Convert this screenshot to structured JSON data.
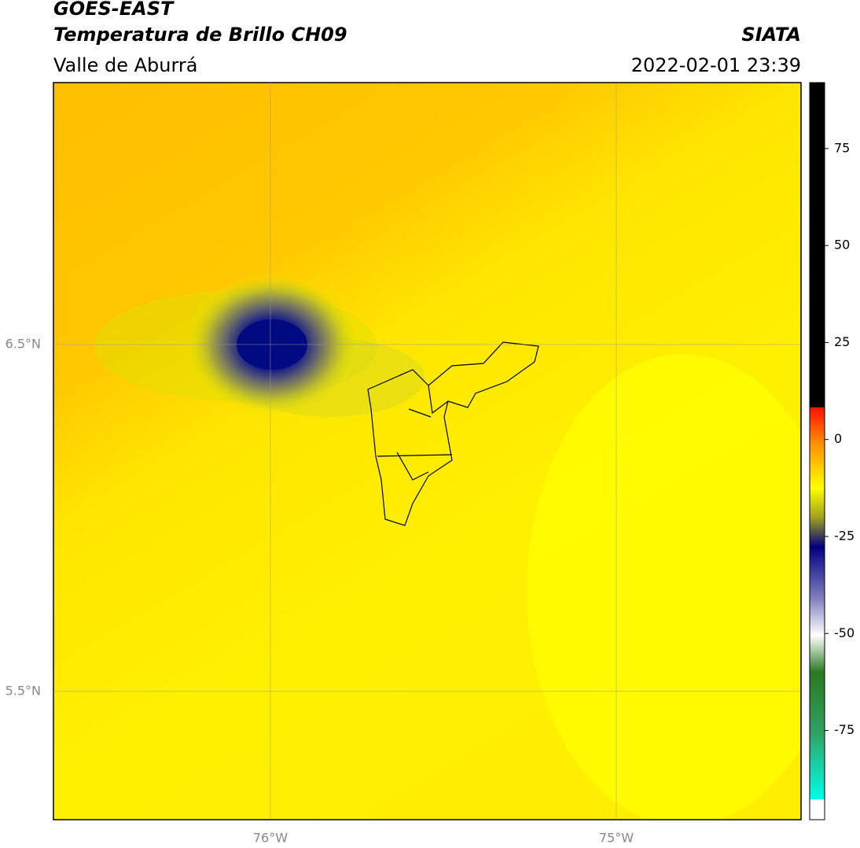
{
  "header": {
    "line1": "GOES-EAST",
    "line2": "Temperatura de Brillo CH09",
    "line3": "Valle de Aburrá",
    "source": "SIATA",
    "datetime": "2022-02-01 23:39"
  },
  "map": {
    "xlim": [
      -76.627,
      -74.466
    ],
    "ylim": [
      5.13,
      7.255
    ],
    "xticks": [
      {
        "value": -76,
        "label": "76°W"
      },
      {
        "value": -75,
        "label": "75°W"
      }
    ],
    "yticks": [
      {
        "value": 6.5,
        "label": "6.5°N"
      },
      {
        "value": 5.5,
        "label": "5.5°N"
      }
    ],
    "grid": true
  },
  "colorbar": {
    "lim": [
      -98,
      92
    ],
    "ticks": [
      75,
      50,
      25,
      0,
      -25,
      -50,
      -75
    ]
  }
}
